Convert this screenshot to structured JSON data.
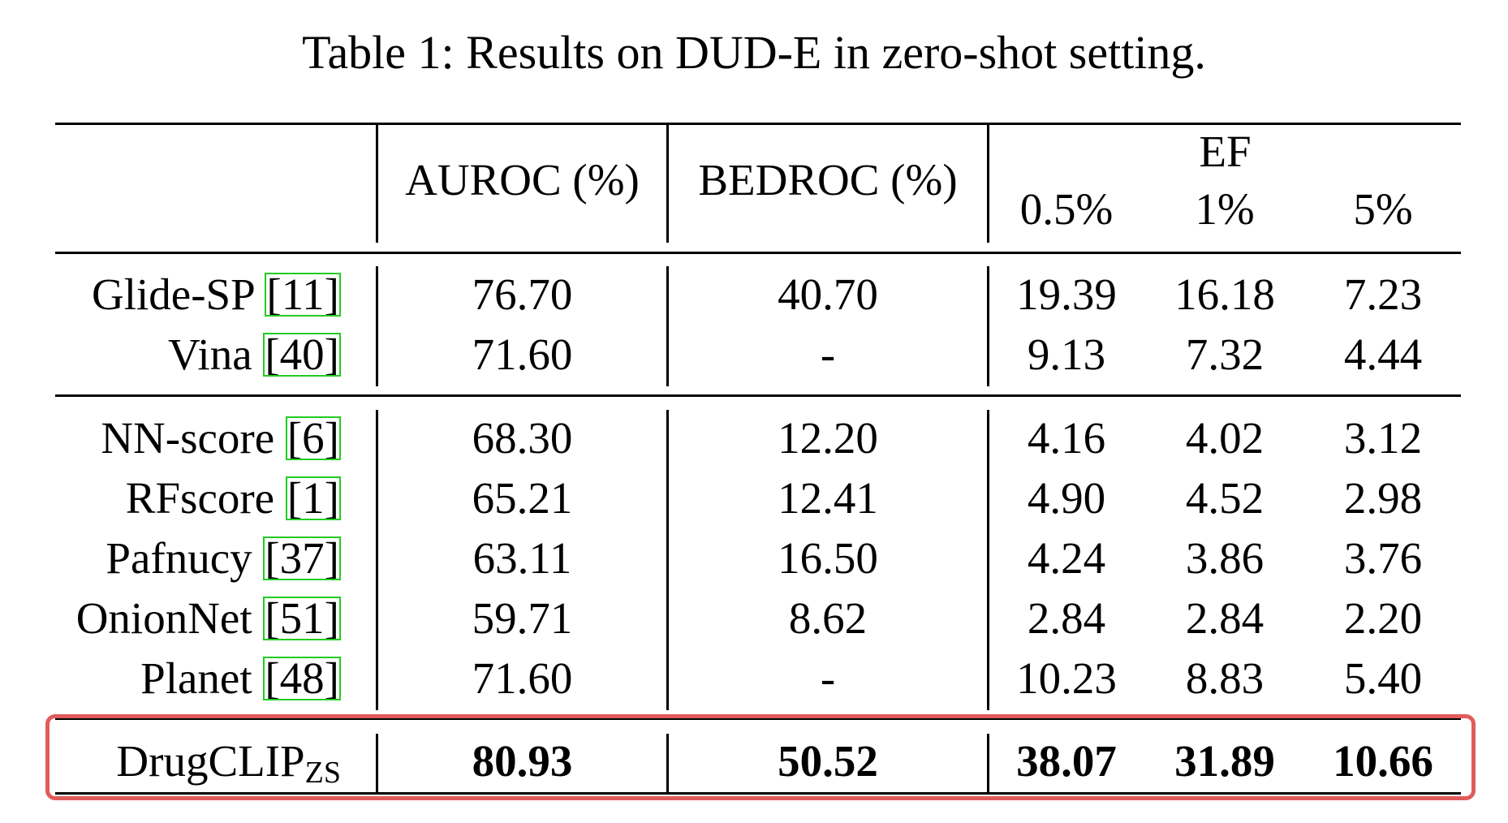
{
  "caption": "Table 1: Results on DUD-E in zero-shot setting.",
  "header": {
    "auroc": "AUROC (%)",
    "bedroc": "BEDROC (%)",
    "ef": "EF",
    "ef_cols": [
      "0.5%",
      "1%",
      "5%"
    ]
  },
  "group1": [
    {
      "method": "Glide-SP ",
      "ref": "[11]",
      "auroc": "76.70",
      "bedroc": "40.70",
      "ef05": "19.39",
      "ef1": "16.18",
      "ef5": "7.23"
    },
    {
      "method": "Vina ",
      "ref": "[40]",
      "auroc": "71.60",
      "bedroc": "-",
      "ef05": "9.13",
      "ef1": "7.32",
      "ef5": "4.44"
    }
  ],
  "group2": [
    {
      "method": "NN-score ",
      "ref": "[6]",
      "auroc": "68.30",
      "bedroc": "12.20",
      "ef05": "4.16",
      "ef1": "4.02",
      "ef5": "3.12"
    },
    {
      "method": "RFscore ",
      "ref": "[1]",
      "auroc": "65.21",
      "bedroc": "12.41",
      "ef05": "4.90",
      "ef1": "4.52",
      "ef5": "2.98"
    },
    {
      "method": "Pafnucy ",
      "ref": "[37]",
      "auroc": "63.11",
      "bedroc": "16.50",
      "ef05": "4.24",
      "ef1": "3.86",
      "ef5": "3.76"
    },
    {
      "method": "OnionNet ",
      "ref": "[51]",
      "auroc": "59.71",
      "bedroc": "8.62",
      "ef05": "2.84",
      "ef1": "2.84",
      "ef5": "2.20"
    },
    {
      "method": "Planet ",
      "ref": "[48]",
      "auroc": "71.60",
      "bedroc": "-",
      "ef05": "10.23",
      "ef1": "8.83",
      "ef5": "5.40"
    }
  ],
  "ours": {
    "method": "DrugCLIP",
    "method_sub": "ZS",
    "auroc": "80.93",
    "bedroc": "50.52",
    "ef05": "38.07",
    "ef1": "31.89",
    "ef5": "10.66"
  },
  "colors": {
    "highlight_border": "#e15b5b",
    "citation_box": "#22cc22"
  }
}
